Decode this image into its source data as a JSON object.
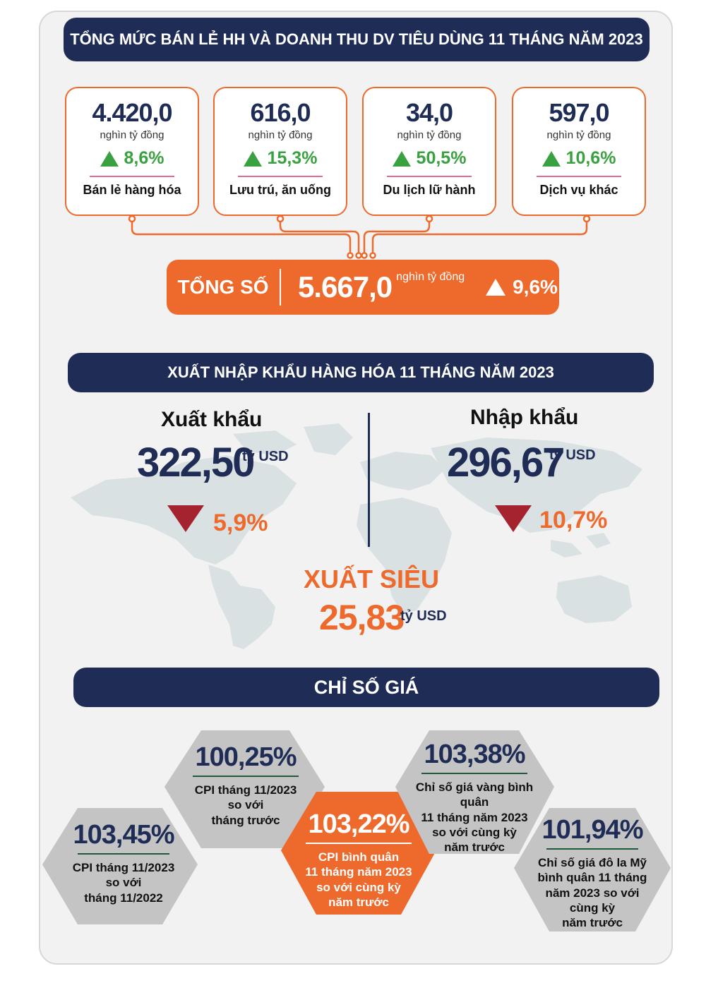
{
  "retail": {
    "title": "TỔNG MỨC BÁN LẺ HH VÀ DOANH THU DV TIÊU DÙNG 11 THÁNG NĂM 2023",
    "cards": [
      {
        "value": "4.420,0",
        "unit": "nghìn tỷ đồng",
        "growth": "8,6%",
        "label": "Bán lẻ hàng hóa"
      },
      {
        "value": "616,0",
        "unit": "nghìn tỷ đồng",
        "growth": "15,3%",
        "label": "Lưu trú, ăn uống"
      },
      {
        "value": "34,0",
        "unit": "nghìn tỷ đồng",
        "growth": "50,5%",
        "label": "Du lịch lữ hành"
      },
      {
        "value": "597,0",
        "unit": "nghìn tỷ đồng",
        "growth": "10,6%",
        "label": "Dịch vụ khác"
      }
    ],
    "total": {
      "label": "TỔNG SỐ",
      "value": "5.667,0",
      "unit": "nghìn tỷ đồng",
      "growth": "9,6%"
    }
  },
  "trade": {
    "title": "XUẤT NHẬP KHẨU HÀNG HÓA 11 THÁNG NĂM 2023",
    "export": {
      "label": "Xuất khẩu",
      "value": "322,50",
      "unit": "tỷ USD",
      "change": "5,9%"
    },
    "import": {
      "label": "Nhập khẩu",
      "value": "296,67",
      "unit": "tỷ USD",
      "change": "10,7%"
    },
    "surplus": {
      "label": "XUẤT SIÊU",
      "value": "25,83",
      "unit": "tỷ USD"
    }
  },
  "price": {
    "title": "CHỈ SỐ GIÁ",
    "items": [
      {
        "value": "103,45%",
        "desc": [
          "CPI tháng 11/2023",
          "so với",
          "tháng 11/2022"
        ]
      },
      {
        "value": "100,25%",
        "desc": [
          "CPI tháng 11/2023",
          "so với",
          "tháng trước"
        ]
      },
      {
        "value": "103,22%",
        "desc": [
          "CPI bình quân",
          "11 tháng năm 2023",
          "so với cùng kỳ",
          "năm trước"
        ]
      },
      {
        "value": "103,38%",
        "desc": [
          "Chỉ số giá vàng bình quân",
          "11 tháng năm 2023",
          "so với cùng kỳ",
          "năm trước"
        ]
      },
      {
        "value": "101,94%",
        "desc": [
          "Chỉ số giá đô la Mỹ",
          "bình quân 11 tháng",
          "năm 2023 so với",
          "cùng kỳ",
          "năm trước"
        ]
      }
    ]
  },
  "colors": {
    "navy": "#1f2d56",
    "orange": "#ee6a2c",
    "green": "#3aa140",
    "red": "#a4232f",
    "gray_hex": "#c4c4c4"
  },
  "icons": {
    "up": "triangle-up-icon",
    "down": "triangle-down-icon"
  }
}
